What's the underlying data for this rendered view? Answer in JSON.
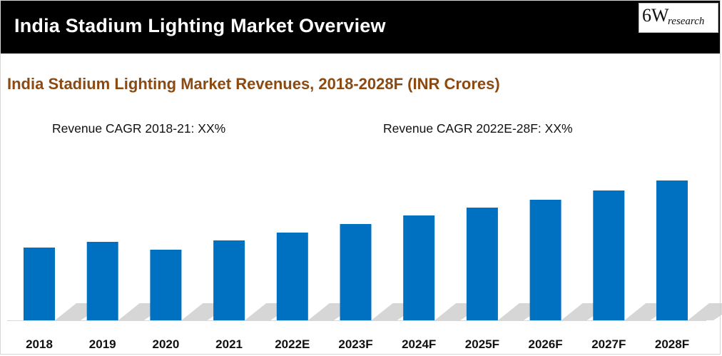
{
  "header": {
    "title": "India Stadium Lighting Market Overview",
    "logo_main": "6W",
    "logo_sub": "research"
  },
  "colors": {
    "bar": "#0070c0",
    "shadow": "#c8c8c8",
    "subtitle": "#8a4a12",
    "header_bg": "#000000"
  },
  "chart_data": {
    "type": "bar",
    "title": "India Stadium Lighting Market Revenues, 2018-2028F (INR Crores)",
    "annotations": [
      "Revenue CAGR 2018-21: XX%",
      "Revenue CAGR 2022E-28F: XX%"
    ],
    "categories": [
      "2018",
      "2019",
      "2020",
      "2021",
      "2022E",
      "2023F",
      "2024F",
      "2025F",
      "2026F",
      "2027F",
      "2028F"
    ],
    "values": [
      102,
      110,
      99,
      112,
      123,
      135,
      147,
      158,
      169,
      182,
      196
    ],
    "ylim": [
      0,
      200
    ],
    "xlabel": "",
    "ylabel": "",
    "grid": false,
    "legend": "none"
  }
}
